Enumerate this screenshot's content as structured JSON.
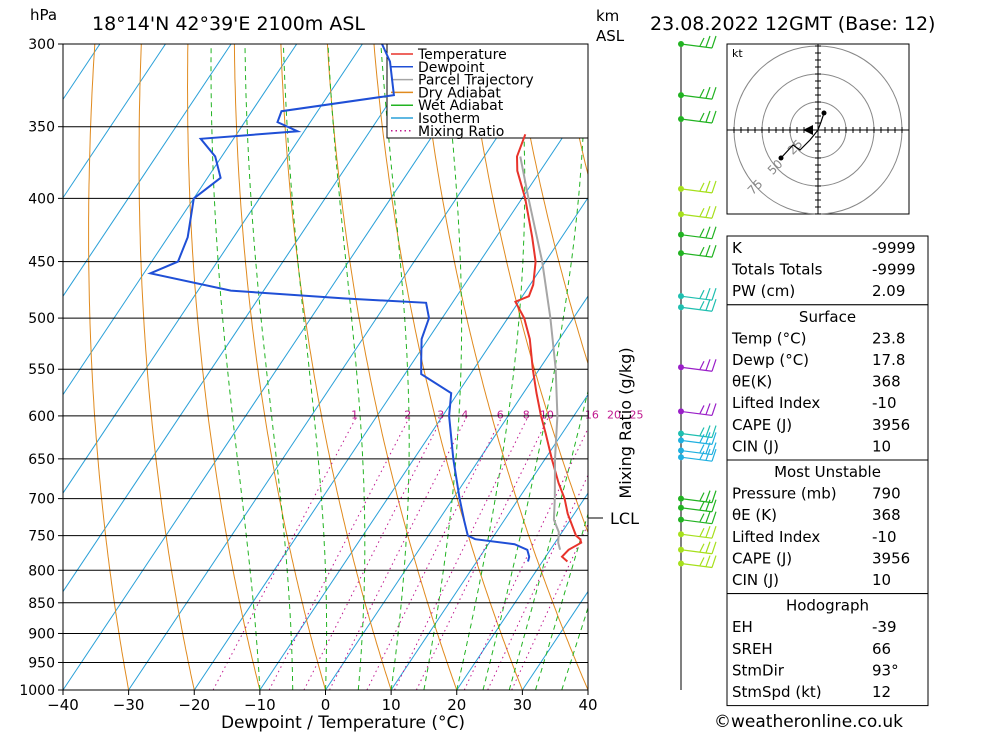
{
  "chart_data": {
    "type": "line",
    "title": "18°14'N  42°39'E  2100m  ASL",
    "date_label": "23.08.2022  12GMT  (Base: 12)",
    "ylabel": "hPa",
    "km_label_1": "km",
    "km_label_2": "ASL",
    "xlabel": "Dewpoint / Temperature (°C)",
    "mixing_ratio_label": "Mixing Ratio (g/kg)",
    "lcl_label": "LCL",
    "lcl_pressure": 728,
    "pressure_ticks": [
      300,
      350,
      400,
      450,
      500,
      550,
      600,
      650,
      700,
      750,
      800,
      850,
      900,
      950,
      1000
    ],
    "temp_ticks": [
      -40,
      -30,
      -20,
      -10,
      0,
      10,
      20,
      30,
      40
    ],
    "temp_range": [
      -40,
      40
    ],
    "pressure_range": [
      300,
      1000
    ],
    "skew_deg_per_logp": 54.5,
    "mixing_ratio_values": [
      "1",
      "2",
      "3",
      "4",
      "6",
      "8",
      "10",
      "16",
      "20",
      "25"
    ],
    "legend": [
      {
        "name": "Temperature",
        "color": "#e8332b",
        "style": "solid"
      },
      {
        "name": "Dewpoint",
        "color": "#1f4fd6",
        "style": "solid"
      },
      {
        "name": "Parcel Trajectory",
        "color": "#a6a6a6",
        "style": "solid"
      },
      {
        "name": "Dry Adiabat",
        "color": "#e08a1e",
        "style": "solid"
      },
      {
        "name": "Wet Adiabat",
        "color": "#22b322",
        "style": "solid"
      },
      {
        "name": "Isotherm",
        "color": "#2aa0d8",
        "style": "solid"
      },
      {
        "name": "Mixing Ratio",
        "color": "#c0188f",
        "style": "dotted"
      }
    ],
    "series": [
      {
        "name": "Temperature",
        "color": "#e8332b",
        "points": [
          [
            787,
            23.8
          ],
          [
            780,
            22.5
          ],
          [
            770,
            22.8
          ],
          [
            760,
            24.0
          ],
          [
            755,
            23.5
          ],
          [
            750,
            22.5
          ],
          [
            720,
            19.0
          ],
          [
            700,
            17.0
          ],
          [
            680,
            14.5
          ],
          [
            650,
            11.0
          ],
          [
            620,
            7.5
          ],
          [
            600,
            5.0
          ],
          [
            575,
            2.0
          ],
          [
            550,
            -1.0
          ],
          [
            520,
            -4.5
          ],
          [
            500,
            -7.5
          ],
          [
            485,
            -10.5
          ],
          [
            480,
            -9.0
          ],
          [
            470,
            -9.5
          ],
          [
            450,
            -11.5
          ],
          [
            430,
            -14.5
          ],
          [
            400,
            -19.5
          ],
          [
            380,
            -23.5
          ],
          [
            370,
            -25.0
          ],
          [
            355,
            -26.0
          ]
        ]
      },
      {
        "name": "Dewpoint",
        "color": "#1f4fd6",
        "points": [
          [
            787,
            17.8
          ],
          [
            780,
            17.5
          ],
          [
            770,
            16.5
          ],
          [
            762,
            14.0
          ],
          [
            755,
            7.5
          ],
          [
            750,
            6.0
          ],
          [
            730,
            4.0
          ],
          [
            700,
            1.0
          ],
          [
            650,
            -4.0
          ],
          [
            600,
            -9.0
          ],
          [
            575,
            -11.0
          ],
          [
            555,
            -17.5
          ],
          [
            540,
            -19.0
          ],
          [
            520,
            -21.0
          ],
          [
            500,
            -22.0
          ],
          [
            486,
            -24.0
          ],
          [
            482,
            -37.0
          ],
          [
            475,
            -55.0
          ],
          [
            460,
            -69.0
          ],
          [
            450,
            -66.0
          ],
          [
            430,
            -67.0
          ],
          [
            400,
            -70.0
          ],
          [
            385,
            -68.0
          ],
          [
            370,
            -71.0
          ],
          [
            358,
            -75.0
          ],
          [
            353,
            -61.0
          ],
          [
            347,
            -65.0
          ],
          [
            340,
            -65.5
          ],
          [
            330,
            -50.0
          ],
          [
            310,
            -54.0
          ],
          [
            300,
            -57.0
          ]
        ]
      },
      {
        "name": "Parcel Trajectory",
        "color": "#a6a6a6",
        "points": [
          [
            770,
            21.5
          ],
          [
            760,
            20.5
          ],
          [
            745,
            19.5
          ],
          [
            728,
            17.5
          ],
          [
            700,
            15.5
          ],
          [
            650,
            11.5
          ],
          [
            600,
            7.5
          ],
          [
            550,
            2.5
          ],
          [
            500,
            -3.5
          ],
          [
            450,
            -10.5
          ],
          [
            400,
            -19.0
          ],
          [
            370,
            -24.5
          ]
        ]
      }
    ]
  },
  "wind_profile": [
    {
      "p": 300,
      "color": "#22b322"
    },
    {
      "p": 330,
      "color": "#22b322"
    },
    {
      "p": 345,
      "color": "#22b322"
    },
    {
      "p": 393,
      "color": "#a6e01c"
    },
    {
      "p": 412,
      "color": "#a6e01c"
    },
    {
      "p": 428,
      "color": "#22b322"
    },
    {
      "p": 443,
      "color": "#22b322"
    },
    {
      "p": 480,
      "color": "#1fbfb0"
    },
    {
      "p": 490,
      "color": "#1fbfb0"
    },
    {
      "p": 548,
      "color": "#9a1fc8"
    },
    {
      "p": 595,
      "color": "#9a1fc8"
    },
    {
      "p": 620,
      "color": "#1fbfb0"
    },
    {
      "p": 628,
      "color": "#1fb0e0"
    },
    {
      "p": 640,
      "color": "#1fb0e0"
    },
    {
      "p": 648,
      "color": "#1fb0e0"
    },
    {
      "p": 700,
      "color": "#22b322"
    },
    {
      "p": 712,
      "color": "#22b322"
    },
    {
      "p": 728,
      "color": "#22b322"
    },
    {
      "p": 748,
      "color": "#a6e01c"
    },
    {
      "p": 770,
      "color": "#a6e01c"
    },
    {
      "p": 790,
      "color": "#a6e01c"
    }
  ],
  "hodograph": {
    "unit_label": "kt",
    "ring_labels": [
      "25",
      "50",
      "75"
    ]
  },
  "stats_top": [
    {
      "label": "K",
      "value": "-9999"
    },
    {
      "label": "Totals Totals",
      "value": "-9999"
    },
    {
      "label": "PW (cm)",
      "value": "2.09"
    }
  ],
  "stats_surface": {
    "title": "Surface",
    "rows": [
      {
        "label": "Temp (°C)",
        "value": "23.8"
      },
      {
        "label": "Dewp (°C)",
        "value": "17.8"
      },
      {
        "label": "θE(K)",
        "value": "368"
      },
      {
        "label": "Lifted Index",
        "value": "-10"
      },
      {
        "label": "CAPE (J)",
        "value": "3956"
      },
      {
        "label": "CIN (J)",
        "value": "10"
      }
    ]
  },
  "stats_mu": {
    "title": "Most Unstable",
    "rows": [
      {
        "label": "Pressure (mb)",
        "value": "790"
      },
      {
        "label": "θE (K)",
        "value": "368"
      },
      {
        "label": "Lifted Index",
        "value": "-10"
      },
      {
        "label": "CAPE (J)",
        "value": "3956"
      },
      {
        "label": "CIN (J)",
        "value": "10"
      }
    ]
  },
  "stats_hodo": {
    "title": "Hodograph",
    "rows": [
      {
        "label": "EH",
        "value": "-39"
      },
      {
        "label": "SREH",
        "value": "66"
      },
      {
        "label": "StmDir",
        "value": "93°"
      },
      {
        "label": "StmSpd (kt)",
        "value": "12"
      }
    ]
  },
  "footer": "©weatheronline.co.uk"
}
